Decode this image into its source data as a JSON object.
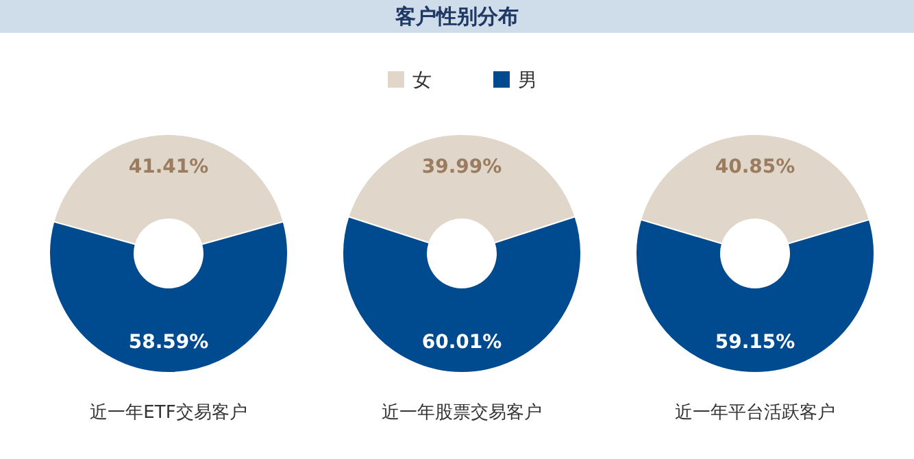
{
  "chart_data": [
    {
      "type": "other",
      "title": "客户性别分布"
    },
    {
      "type": "donut",
      "xlabel": "近一年ETF交易客户",
      "categories": [
        null,
        null
      ],
      "values": [
        41.41,
        58.59
      ],
      "colors": [
        "#e0d6c9",
        "#004a8f"
      ],
      "value_labels": [
        "41.41%",
        "58.59%"
      ]
    },
    {
      "type": "donut",
      "xlabel": "近一年股票交易客户",
      "categories": [
        "女",
        "男"
      ],
      "values": [
        39.99,
        60.01
      ],
      "colors": [
        "#e0d6c9",
        "#004a8f"
      ],
      "value_labels": [
        "39.99%",
        "60.01%"
      ],
      "legend": "top"
    },
    {
      "type": "donut",
      "xlabel": "近一年平台活跃客户",
      "categories": [
        null,
        null
      ],
      "values": [
        40.85,
        59.15
      ],
      "colors": [
        "#e0d6c9",
        "#004a8f"
      ],
      "value_labels": [
        "40.85%",
        "59.15%"
      ]
    }
  ]
}
